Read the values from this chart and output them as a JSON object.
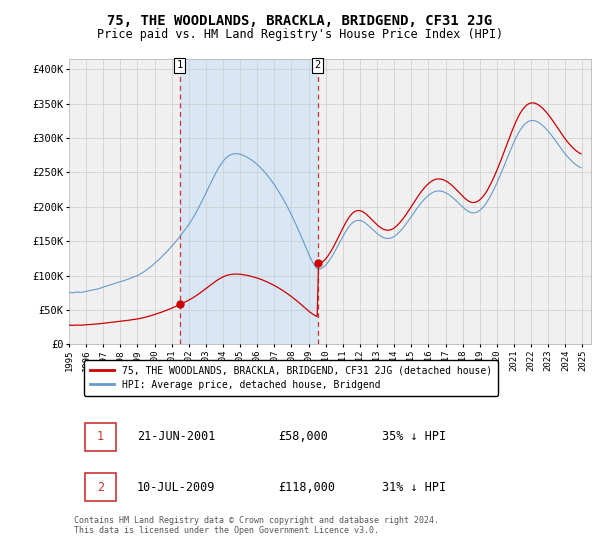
{
  "title": "75, THE WOODLANDS, BRACKLA, BRIDGEND, CF31 2JG",
  "subtitle": "Price paid vs. HM Land Registry's House Price Index (HPI)",
  "title_fontsize": 10,
  "subtitle_fontsize": 8.5,
  "ylabel_ticks": [
    "£0",
    "£50K",
    "£100K",
    "£150K",
    "£200K",
    "£250K",
    "£300K",
    "£350K",
    "£400K"
  ],
  "ytick_values": [
    0,
    50000,
    100000,
    150000,
    200000,
    250000,
    300000,
    350000,
    400000
  ],
  "ylim": [
    0,
    415000
  ],
  "xlim_start": 1995.0,
  "xlim_end": 2025.5,
  "grid_color": "#cccccc",
  "background_color": "#ffffff",
  "plot_bg_color": "#f0f0f0",
  "red_line_color": "#cc0000",
  "blue_line_color": "#6699cc",
  "shade_color": "#d0e4f7",
  "sale1_date": 2001.47,
  "sale1_price": 58000,
  "sale2_date": 2009.52,
  "sale2_price": 118000,
  "vline_color": "#cc3333",
  "legend_red_label": "75, THE WOODLANDS, BRACKLA, BRIDGEND, CF31 2JG (detached house)",
  "legend_blue_label": "HPI: Average price, detached house, Bridgend",
  "table_row1": [
    "1",
    "21-JUN-2001",
    "£58,000",
    "35% ↓ HPI"
  ],
  "table_row2": [
    "2",
    "10-JUL-2009",
    "£118,000",
    "31% ↓ HPI"
  ],
  "footer_text": "Contains HM Land Registry data © Crown copyright and database right 2024.\nThis data is licensed under the Open Government Licence v3.0.",
  "hpi_years": [
    1995.0,
    1995.083,
    1995.167,
    1995.25,
    1995.333,
    1995.417,
    1995.5,
    1995.583,
    1995.667,
    1995.75,
    1995.833,
    1995.917,
    1996.0,
    1996.083,
    1996.167,
    1996.25,
    1996.333,
    1996.417,
    1996.5,
    1996.583,
    1996.667,
    1996.75,
    1996.833,
    1996.917,
    1997.0,
    1997.083,
    1997.167,
    1997.25,
    1997.333,
    1997.417,
    1997.5,
    1997.583,
    1997.667,
    1997.75,
    1997.833,
    1997.917,
    1998.0,
    1998.083,
    1998.167,
    1998.25,
    1998.333,
    1998.417,
    1998.5,
    1998.583,
    1998.667,
    1998.75,
    1998.833,
    1998.917,
    1999.0,
    1999.083,
    1999.167,
    1999.25,
    1999.333,
    1999.417,
    1999.5,
    1999.583,
    1999.667,
    1999.75,
    1999.833,
    1999.917,
    2000.0,
    2000.083,
    2000.167,
    2000.25,
    2000.333,
    2000.417,
    2000.5,
    2000.583,
    2000.667,
    2000.75,
    2000.833,
    2000.917,
    2001.0,
    2001.083,
    2001.167,
    2001.25,
    2001.333,
    2001.417,
    2001.5,
    2001.583,
    2001.667,
    2001.75,
    2001.833,
    2001.917,
    2002.0,
    2002.083,
    2002.167,
    2002.25,
    2002.333,
    2002.417,
    2002.5,
    2002.583,
    2002.667,
    2002.75,
    2002.833,
    2002.917,
    2003.0,
    2003.083,
    2003.167,
    2003.25,
    2003.333,
    2003.417,
    2003.5,
    2003.583,
    2003.667,
    2003.75,
    2003.833,
    2003.917,
    2004.0,
    2004.083,
    2004.167,
    2004.25,
    2004.333,
    2004.417,
    2004.5,
    2004.583,
    2004.667,
    2004.75,
    2004.833,
    2004.917,
    2005.0,
    2005.083,
    2005.167,
    2005.25,
    2005.333,
    2005.417,
    2005.5,
    2005.583,
    2005.667,
    2005.75,
    2005.833,
    2005.917,
    2006.0,
    2006.083,
    2006.167,
    2006.25,
    2006.333,
    2006.417,
    2006.5,
    2006.583,
    2006.667,
    2006.75,
    2006.833,
    2006.917,
    2007.0,
    2007.083,
    2007.167,
    2007.25,
    2007.333,
    2007.417,
    2007.5,
    2007.583,
    2007.667,
    2007.75,
    2007.833,
    2007.917,
    2008.0,
    2008.083,
    2008.167,
    2008.25,
    2008.333,
    2008.417,
    2008.5,
    2008.583,
    2008.667,
    2008.75,
    2008.833,
    2008.917,
    2009.0,
    2009.083,
    2009.167,
    2009.25,
    2009.333,
    2009.417,
    2009.5,
    2009.583,
    2009.667,
    2009.75,
    2009.833,
    2009.917,
    2010.0,
    2010.083,
    2010.167,
    2010.25,
    2010.333,
    2010.417,
    2010.5,
    2010.583,
    2010.667,
    2010.75,
    2010.833,
    2010.917,
    2011.0,
    2011.083,
    2011.167,
    2011.25,
    2011.333,
    2011.417,
    2011.5,
    2011.583,
    2011.667,
    2011.75,
    2011.833,
    2011.917,
    2012.0,
    2012.083,
    2012.167,
    2012.25,
    2012.333,
    2012.417,
    2012.5,
    2012.583,
    2012.667,
    2012.75,
    2012.833,
    2012.917,
    2013.0,
    2013.083,
    2013.167,
    2013.25,
    2013.333,
    2013.417,
    2013.5,
    2013.583,
    2013.667,
    2013.75,
    2013.833,
    2013.917,
    2014.0,
    2014.083,
    2014.167,
    2014.25,
    2014.333,
    2014.417,
    2014.5,
    2014.583,
    2014.667,
    2014.75,
    2014.833,
    2014.917,
    2015.0,
    2015.083,
    2015.167,
    2015.25,
    2015.333,
    2015.417,
    2015.5,
    2015.583,
    2015.667,
    2015.75,
    2015.833,
    2015.917,
    2016.0,
    2016.083,
    2016.167,
    2016.25,
    2016.333,
    2016.417,
    2016.5,
    2016.583,
    2016.667,
    2016.75,
    2016.833,
    2016.917,
    2017.0,
    2017.083,
    2017.167,
    2017.25,
    2017.333,
    2017.417,
    2017.5,
    2017.583,
    2017.667,
    2017.75,
    2017.833,
    2017.917,
    2018.0,
    2018.083,
    2018.167,
    2018.25,
    2018.333,
    2018.417,
    2018.5,
    2018.583,
    2018.667,
    2018.75,
    2018.833,
    2018.917,
    2019.0,
    2019.083,
    2019.167,
    2019.25,
    2019.333,
    2019.417,
    2019.5,
    2019.583,
    2019.667,
    2019.75,
    2019.833,
    2019.917,
    2020.0,
    2020.083,
    2020.167,
    2020.25,
    2020.333,
    2020.417,
    2020.5,
    2020.583,
    2020.667,
    2020.75,
    2020.833,
    2020.917,
    2021.0,
    2021.083,
    2021.167,
    2021.25,
    2021.333,
    2021.417,
    2021.5,
    2021.583,
    2021.667,
    2021.75,
    2021.833,
    2021.917,
    2022.0,
    2022.083,
    2022.167,
    2022.25,
    2022.333,
    2022.417,
    2022.5,
    2022.583,
    2022.667,
    2022.75,
    2022.833,
    2022.917,
    2023.0,
    2023.083,
    2023.167,
    2023.25,
    2023.333,
    2023.417,
    2023.5,
    2023.583,
    2023.667,
    2023.75,
    2023.833,
    2023.917,
    2024.0,
    2024.083,
    2024.167,
    2024.25,
    2024.333,
    2024.417,
    2024.5,
    2024.583,
    2024.667,
    2024.75,
    2024.833,
    2024.917
  ],
  "hpi_values": [
    76000,
    75200,
    74800,
    75100,
    75400,
    75800,
    76100,
    75700,
    75300,
    75600,
    76000,
    76500,
    77000,
    77400,
    77900,
    78300,
    78700,
    79100,
    79500,
    79900,
    80400,
    81000,
    81700,
    82400,
    83100,
    83700,
    84300,
    85000,
    85700,
    86400,
    87100,
    87800,
    88400,
    89100,
    89700,
    90300,
    91000,
    91600,
    92200,
    92900,
    93600,
    94300,
    95100,
    95900,
    96700,
    97500,
    98300,
    99100,
    100000,
    101000,
    102200,
    103400,
    104800,
    106200,
    107600,
    109100,
    110700,
    112300,
    114000,
    115800,
    117600,
    119400,
    121200,
    123100,
    125000,
    127000,
    129100,
    131200,
    133400,
    135600,
    137900,
    140200,
    142500,
    144800,
    147200,
    149700,
    152200,
    154800,
    157400,
    160100,
    162800,
    165600,
    168400,
    171300,
    174300,
    177400,
    180700,
    184100,
    187600,
    191300,
    195100,
    199000,
    203000,
    207100,
    211300,
    215600,
    219900,
    224200,
    228500,
    232800,
    237100,
    241300,
    245400,
    249400,
    253200,
    256800,
    260100,
    263200,
    266000,
    268500,
    270700,
    272500,
    274000,
    275200,
    276000,
    276600,
    277000,
    277200,
    277100,
    276800,
    276300,
    275600,
    274800,
    273900,
    272900,
    271800,
    270600,
    269300,
    267900,
    266400,
    264800,
    263100,
    261300,
    259400,
    257400,
    255300,
    253100,
    250800,
    248400,
    245900,
    243300,
    240600,
    237800,
    234900,
    231900,
    228800,
    225600,
    222300,
    218900,
    215400,
    211800,
    208100,
    204300,
    200400,
    196400,
    192300,
    188100,
    183800,
    179400,
    174900,
    170300,
    165600,
    160800,
    155900,
    151000,
    146000,
    141000,
    136000,
    131200,
    126700,
    122500,
    118700,
    115200,
    112100,
    109400,
    109200,
    109600,
    110400,
    111600,
    113200,
    115200,
    117600,
    120300,
    123300,
    126500,
    129900,
    133500,
    137200,
    141100,
    145000,
    148900,
    152800,
    156600,
    160300,
    163800,
    167100,
    170100,
    172800,
    175100,
    177000,
    178500,
    179500,
    180100,
    180300,
    180100,
    179500,
    178600,
    177400,
    176000,
    174300,
    172500,
    170600,
    168700,
    166700,
    164800,
    162900,
    161100,
    159400,
    157900,
    156600,
    155500,
    154700,
    154100,
    153800,
    153800,
    154100,
    154700,
    155600,
    156800,
    158300,
    160000,
    161900,
    164000,
    166300,
    168700,
    171300,
    174000,
    176800,
    179700,
    182700,
    185700,
    188700,
    191700,
    194700,
    197600,
    200400,
    203100,
    205700,
    208200,
    210500,
    212700,
    214700,
    216500,
    218100,
    219500,
    220700,
    221600,
    222300,
    222700,
    222900,
    222800,
    222500,
    222000,
    221300,
    220400,
    219300,
    218000,
    216600,
    215000,
    213300,
    211500,
    209600,
    207700,
    205700,
    203700,
    201700,
    199700,
    197800,
    196100,
    194500,
    193200,
    192200,
    191500,
    191100,
    191100,
    191500,
    192200,
    193300,
    194700,
    196500,
    198600,
    201000,
    203700,
    206700,
    210000,
    213600,
    217400,
    221400,
    225600,
    229900,
    234400,
    239100,
    243900,
    248800,
    253800,
    258900,
    264000,
    269200,
    274300,
    279400,
    284400,
    289300,
    294000,
    298500,
    302700,
    306600,
    310200,
    313400,
    316200,
    318700,
    320800,
    322500,
    323800,
    324700,
    325200,
    325400,
    325200,
    324700,
    323900,
    322800,
    321500,
    320000,
    318300,
    316400,
    314300,
    312100,
    309700,
    307200,
    304600,
    301900,
    299100,
    296200,
    293300,
    290400,
    287500,
    284700,
    281900,
    279200,
    276600,
    274100,
    271700,
    269400,
    267300,
    265300,
    263400,
    261700,
    260200,
    258900,
    257700,
    256700
  ]
}
